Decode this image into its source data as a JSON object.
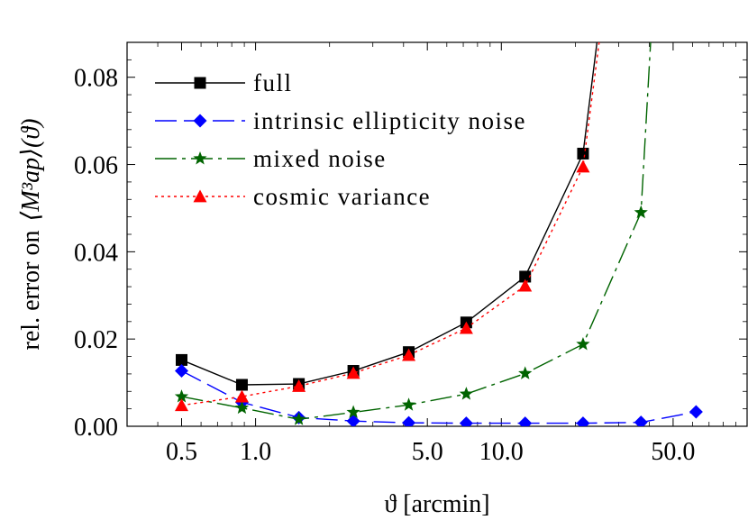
{
  "chart_data": {
    "type": "line",
    "xlabel": "ϑ [arcmin]",
    "ylabel_prefix": "rel. error on",
    "ylabel_math": "⟨M³ap⟩(ϑ)",
    "xscale": "log",
    "xlim": [
      0.3,
      100
    ],
    "ylim": [
      0,
      0.088
    ],
    "xticks": [
      0.5,
      1.0,
      5.0,
      10.0,
      50.0
    ],
    "xtick_labels": [
      "0.5",
      "1.0",
      "5.0",
      "10.0",
      "50.0"
    ],
    "yticks": [
      0.0,
      0.02,
      0.04,
      0.06,
      0.08
    ],
    "ytick_labels": [
      "0.00",
      "0.02",
      "0.04",
      "0.06",
      "0.08"
    ],
    "legend_position": "top-left",
    "series": [
      {
        "name": "full",
        "color": "#000000",
        "dash": "",
        "marker": "square",
        "x": [
          0.5,
          0.88,
          1.5,
          2.5,
          4.2,
          7.2,
          12.5,
          21.5,
          24.5
        ],
        "y": [
          0.0152,
          0.0095,
          0.0097,
          0.0127,
          0.017,
          0.0238,
          0.0343,
          0.0625,
          0.088
        ],
        "marked": [
          true,
          true,
          true,
          true,
          true,
          true,
          true,
          true,
          false
        ]
      },
      {
        "name": "intrinsic ellipticity noise",
        "color": "#0000ff",
        "dash": "24,8",
        "marker": "diamond",
        "x": [
          0.5,
          0.88,
          1.5,
          2.5,
          4.2,
          7.2,
          12.5,
          21.5,
          37.0,
          62.0
        ],
        "y": [
          0.0127,
          0.0055,
          0.002,
          0.0012,
          0.0008,
          0.0007,
          0.0007,
          0.0007,
          0.0009,
          0.0033
        ],
        "marked": [
          true,
          true,
          true,
          true,
          true,
          true,
          true,
          true,
          true,
          true
        ]
      },
      {
        "name": "mixed noise",
        "color": "#006400",
        "dash": "24,6,4,6",
        "marker": "star",
        "x": [
          0.5,
          0.88,
          1.5,
          2.5,
          4.2,
          7.2,
          12.5,
          21.5,
          37.0,
          40.5
        ],
        "y": [
          0.0068,
          0.0042,
          0.0016,
          0.0032,
          0.0049,
          0.0074,
          0.0121,
          0.0188,
          0.049,
          0.088
        ],
        "marked": [
          true,
          true,
          true,
          true,
          true,
          true,
          true,
          true,
          true,
          false
        ]
      },
      {
        "name": "cosmic variance",
        "color": "#ff0000",
        "dash": "3,4",
        "marker": "triangle",
        "x": [
          0.5,
          0.88,
          1.5,
          2.5,
          4.2,
          7.2,
          12.5,
          21.5,
          25.0
        ],
        "y": [
          0.0048,
          0.0068,
          0.0092,
          0.0122,
          0.0163,
          0.0225,
          0.0322,
          0.0595,
          0.088
        ],
        "marked": [
          true,
          true,
          true,
          true,
          true,
          true,
          true,
          true,
          false
        ]
      }
    ]
  }
}
